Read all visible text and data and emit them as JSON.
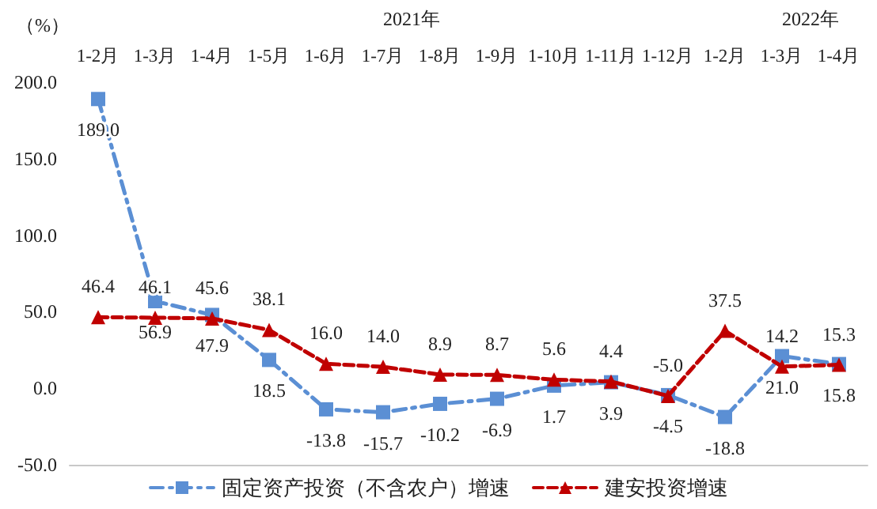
{
  "chart_data": {
    "type": "line",
    "ylabel": "（%）",
    "categories": [
      "1-2月",
      "1-3月",
      "1-4月",
      "1-5月",
      "1-6月",
      "1-7月",
      "1-8月",
      "1-9月",
      "1-10月",
      "1-11月",
      "1-12月",
      "1-2月",
      "1-3月",
      "1-4月"
    ],
    "annotations": [
      "2021年",
      "2022年"
    ],
    "series": [
      {
        "name": "固定资产投资（不含农户）增速",
        "color": "#5b8fd4",
        "marker": "square",
        "line_style": "dashdot",
        "values": [
          189.0,
          56.9,
          47.9,
          18.5,
          -13.8,
          -15.7,
          -10.2,
          -6.9,
          1.7,
          3.9,
          -4.5,
          -18.8,
          21.0,
          15.8
        ],
        "value_labels": [
          "189.0",
          "56.9",
          "47.9",
          "18.5",
          "-13.8",
          "-15.7",
          "-10.2",
          "-6.9",
          "1.7",
          "3.9",
          "-4.5",
          "-18.8",
          "21.0",
          "15.8"
        ]
      },
      {
        "name": "建安投资增速",
        "color": "#c00000",
        "marker": "triangle",
        "line_style": "dashed",
        "values": [
          46.4,
          46.1,
          45.6,
          38.1,
          16.0,
          14.0,
          8.9,
          8.7,
          5.6,
          4.4,
          -5.0,
          37.5,
          14.2,
          15.3
        ],
        "value_labels": [
          "46.4",
          "46.1",
          "45.6",
          "38.1",
          "16.0",
          "14.0",
          "8.9",
          "8.7",
          "5.6",
          "4.4",
          "-5.0",
          "37.5",
          "14.2",
          "15.3"
        ]
      }
    ],
    "ylim": [
      -50,
      200
    ],
    "yticks": [
      {
        "value": -50,
        "label": "-50.0"
      },
      {
        "value": 0,
        "label": "0.0"
      },
      {
        "value": 50,
        "label": "50.0"
      },
      {
        "value": 100,
        "label": "100.0"
      },
      {
        "value": 150,
        "label": "150.0"
      },
      {
        "value": 200,
        "label": "200.0"
      }
    ],
    "grid": false,
    "legend": "bottom"
  }
}
